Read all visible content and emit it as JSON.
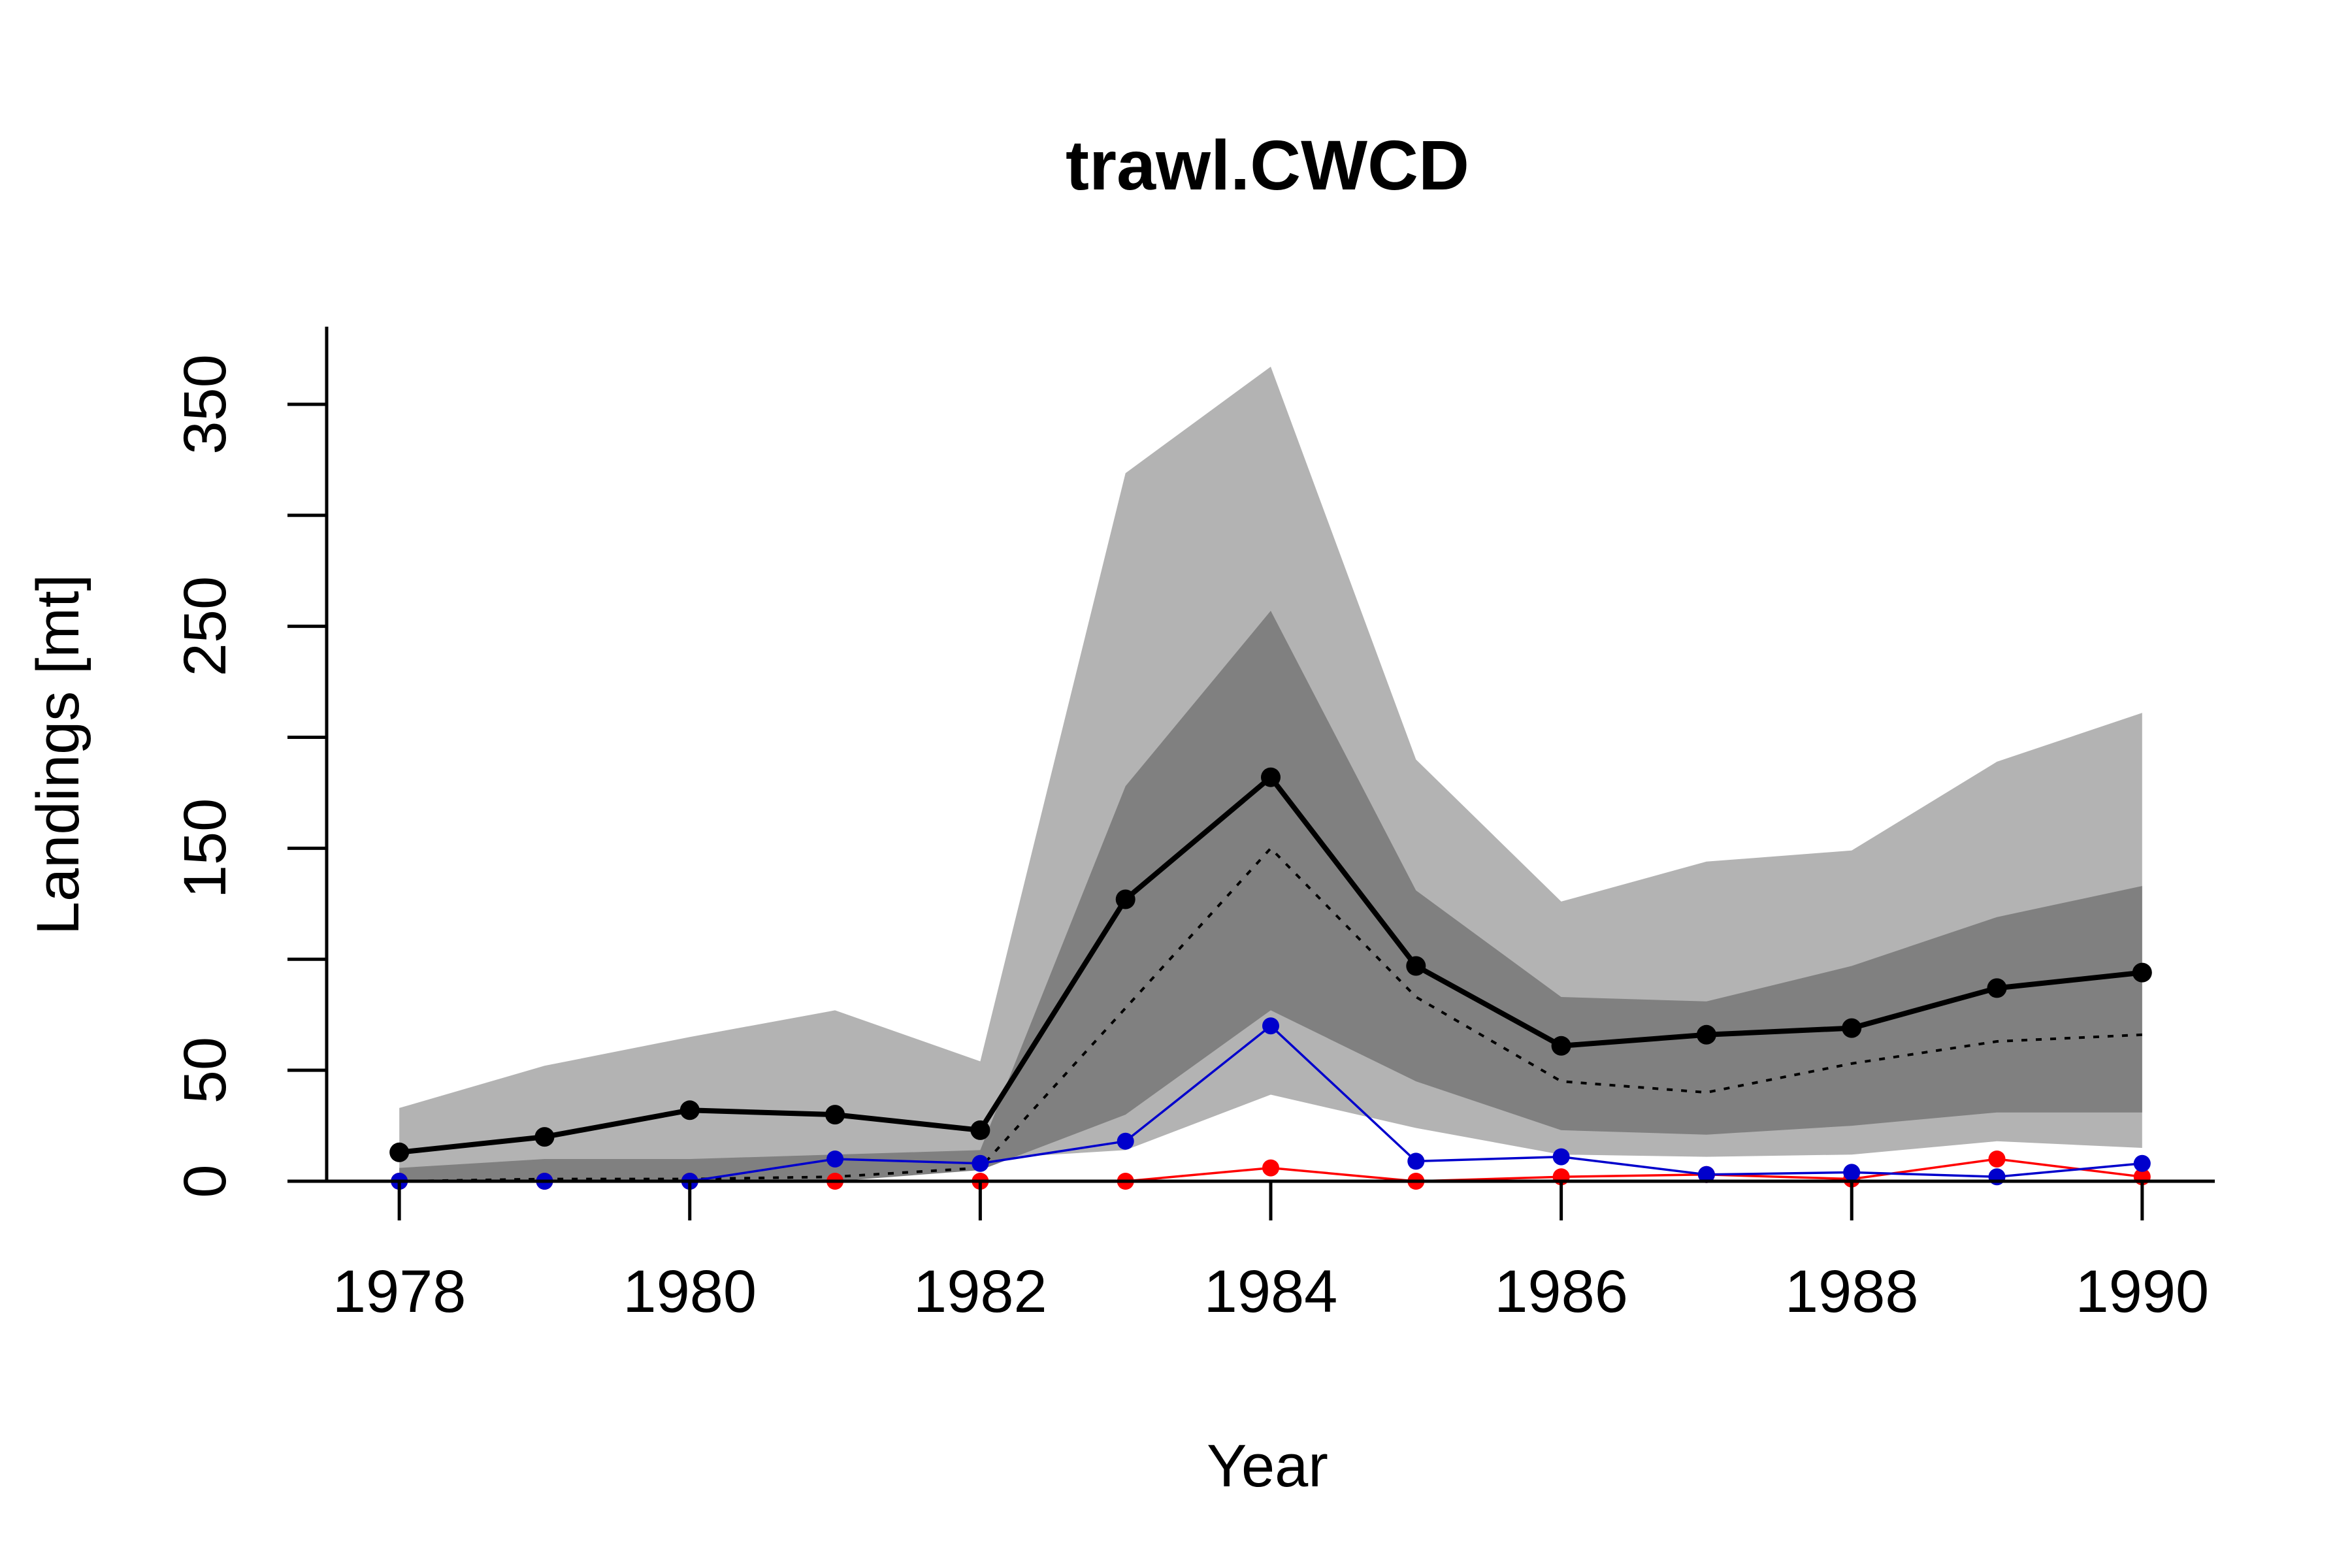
{
  "chart_data": {
    "type": "line",
    "title": "trawl.CWCD",
    "xlabel": "Year",
    "ylabel": "Landings [mt]",
    "x": [
      1978,
      1979,
      1980,
      1981,
      1982,
      1983,
      1984,
      1985,
      1986,
      1987,
      1988,
      1989,
      1990
    ],
    "xticks": [
      1978,
      1980,
      1982,
      1984,
      1986,
      1988,
      1990
    ],
    "xlim": [
      1977.5,
      1990.5
    ],
    "yticks": [
      0,
      50,
      100,
      150,
      200,
      250,
      300,
      350
    ],
    "ylabels": [
      "0",
      "50",
      "",
      "150",
      "",
      "250",
      "",
      "350"
    ],
    "ylim": [
      0,
      385
    ],
    "grid": false,
    "bands": [
      {
        "fill": "#b3b3b3",
        "upper": [
          33,
          52,
          65,
          77,
          54,
          319,
          367,
          190,
          126,
          144,
          149,
          189,
          211
        ],
        "lower": [
          3,
          8,
          8,
          10,
          10,
          14,
          39,
          24,
          12,
          11,
          12,
          18,
          15
        ]
      },
      {
        "fill": "#808080",
        "upper": [
          6,
          10,
          10,
          12,
          14,
          178,
          257,
          131,
          83,
          81,
          97,
          119,
          133
        ],
        "lower": [
          0,
          0,
          0,
          0,
          5,
          30,
          77,
          45,
          23,
          21,
          25,
          31,
          31
        ]
      }
    ],
    "series": [
      {
        "color": "#000000",
        "style": "solid-thick-points",
        "values": [
          13,
          20,
          32,
          30,
          23,
          127,
          182,
          97,
          61,
          66,
          69,
          87,
          94
        ]
      },
      {
        "color": "#000000",
        "style": "dotted",
        "values": [
          0,
          1,
          1,
          2,
          6,
          78,
          150,
          83,
          45,
          40,
          53,
          63,
          66
        ]
      },
      {
        "color": "#0000cc",
        "style": "thin-points",
        "values": [
          0,
          0,
          0,
          10,
          8,
          18,
          70,
          9,
          11,
          3,
          4,
          2,
          8
        ]
      },
      {
        "color": "#ff0000",
        "style": "thin-points",
        "values": [
          0,
          0,
          0,
          0,
          0,
          0,
          6,
          0,
          2,
          3,
          1,
          10,
          2
        ]
      }
    ]
  }
}
